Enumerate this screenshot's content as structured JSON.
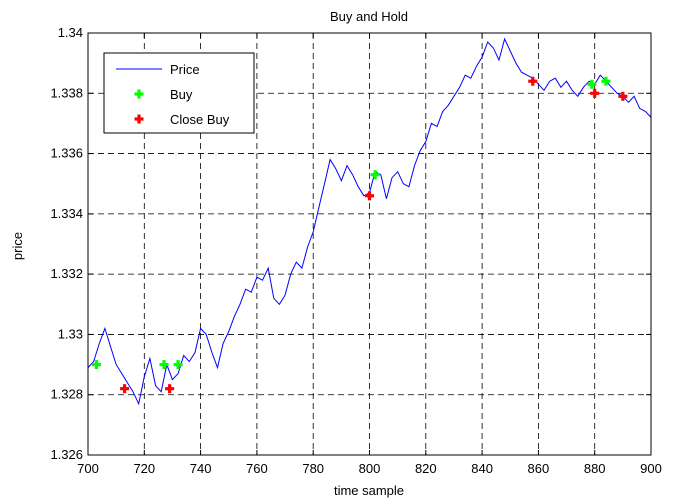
{
  "chart_data": {
    "type": "line",
    "title": "Buy and Hold",
    "xlabel": "time sample",
    "ylabel": "price",
    "xlim": [
      700,
      900
    ],
    "ylim": [
      1.326,
      1.34
    ],
    "xticks": [
      "700",
      "720",
      "740",
      "760",
      "780",
      "800",
      "820",
      "840",
      "860",
      "880",
      "900"
    ],
    "yticks": [
      "1.326",
      "1.328",
      "1.33",
      "1.332",
      "1.334",
      "1.336",
      "1.338",
      "1.34"
    ],
    "grid": true,
    "legend_position": "top-left",
    "series": [
      {
        "name": "Price",
        "color": "#0000ff",
        "style": "line",
        "x": [
          700,
          702,
          704,
          706,
          708,
          710,
          712,
          714,
          716,
          718,
          720,
          722,
          724,
          726,
          728,
          730,
          732,
          734,
          736,
          738,
          740,
          742,
          744,
          746,
          748,
          750,
          752,
          754,
          756,
          758,
          760,
          762,
          764,
          766,
          768,
          770,
          772,
          774,
          776,
          778,
          780,
          782,
          784,
          786,
          788,
          790,
          792,
          794,
          796,
          798,
          800,
          802,
          804,
          806,
          808,
          810,
          812,
          814,
          816,
          818,
          820,
          822,
          824,
          826,
          828,
          830,
          832,
          834,
          836,
          838,
          840,
          842,
          844,
          846,
          848,
          850,
          852,
          854,
          856,
          858,
          860,
          862,
          864,
          866,
          868,
          870,
          872,
          874,
          876,
          878,
          880,
          882,
          884,
          886,
          888,
          890,
          892,
          894,
          896,
          898,
          900
        ],
        "y": [
          1.3289,
          1.3291,
          1.3297,
          1.3302,
          1.3296,
          1.329,
          1.3287,
          1.3284,
          1.3281,
          1.3277,
          1.3286,
          1.3292,
          1.3283,
          1.3281,
          1.329,
          1.3285,
          1.3287,
          1.3293,
          1.3291,
          1.3294,
          1.3302,
          1.33,
          1.3294,
          1.3289,
          1.3297,
          1.3301,
          1.3306,
          1.331,
          1.3315,
          1.3314,
          1.3319,
          1.3318,
          1.3322,
          1.3312,
          1.331,
          1.3313,
          1.332,
          1.3324,
          1.3322,
          1.3329,
          1.3334,
          1.3342,
          1.335,
          1.3358,
          1.3355,
          1.3351,
          1.3356,
          1.3353,
          1.3349,
          1.3346,
          1.3347,
          1.3354,
          1.3353,
          1.3345,
          1.3352,
          1.3354,
          1.335,
          1.3349,
          1.3356,
          1.3361,
          1.3364,
          1.337,
          1.3369,
          1.3374,
          1.3376,
          1.3379,
          1.3382,
          1.3386,
          1.3385,
          1.3389,
          1.3392,
          1.3397,
          1.3395,
          1.3391,
          1.3398,
          1.3394,
          1.339,
          1.3387,
          1.3386,
          1.3385,
          1.3383,
          1.3381,
          1.3384,
          1.3385,
          1.3382,
          1.3384,
          1.3381,
          1.3379,
          1.3382,
          1.3384,
          1.3383,
          1.3386,
          1.3384,
          1.3382,
          1.338,
          1.3379,
          1.3377,
          1.3379,
          1.3375,
          1.3374,
          1.3372
        ]
      },
      {
        "name": "Buy",
        "color": "#00ff00",
        "style": "marker",
        "x": [
          703,
          727,
          732,
          802,
          879,
          884
        ],
        "y": [
          1.329,
          1.329,
          1.329,
          1.3353,
          1.3383,
          1.3384
        ]
      },
      {
        "name": "Close Buy",
        "color": "#ff0000",
        "style": "marker",
        "x": [
          713,
          729,
          800,
          858,
          880,
          890
        ],
        "y": [
          1.3282,
          1.3282,
          1.3346,
          1.3384,
          1.338,
          1.3379
        ]
      }
    ]
  }
}
